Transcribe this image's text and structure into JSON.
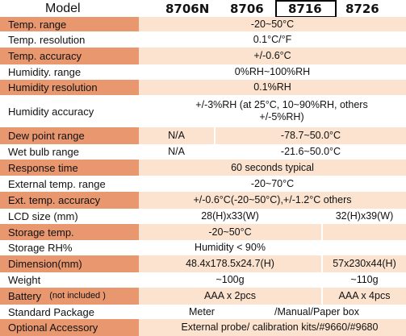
{
  "header": {
    "model_label": "Model",
    "products": [
      "8706N",
      "8706",
      "8716",
      "8726"
    ],
    "selected_product": "8716"
  },
  "rows": [
    {
      "label": "Temp. range",
      "cells": [
        {
          "text": "-20~50°C"
        }
      ]
    },
    {
      "label": "Temp. resolution",
      "cells": [
        {
          "text": "0.1°C/°F"
        }
      ]
    },
    {
      "label": "Temp. accuracy",
      "cells": [
        {
          "text": "+/-0.6°C"
        }
      ]
    },
    {
      "label": "Humidity. range",
      "cells": [
        {
          "text": "0%RH~100%RH"
        }
      ]
    },
    {
      "label": "Humidity resolution",
      "cells": [
        {
          "text": "0.1%RH"
        }
      ]
    },
    {
      "label": "Humidity accuracy",
      "cells": [
        {
          "text": "+/-3%RH (at 25°C, 10~90%RH, others +/-5%RH)"
        }
      ]
    },
    {
      "label": "Dew point range",
      "cells": [
        {
          "text": "N/A"
        },
        {
          "text": "-78.7~50.0°C"
        }
      ]
    },
    {
      "label": "Wet bulb range",
      "cells": [
        {
          "text": "N/A"
        },
        {
          "text": "-21.6~50.0°C"
        }
      ]
    },
    {
      "label": "Response time",
      "cells": [
        {
          "text": "60 seconds typical"
        }
      ]
    },
    {
      "label": "External temp. range",
      "cells": [
        {
          "text": "-20~70°C"
        }
      ]
    },
    {
      "label": "Ext. temp. accuracy",
      "cells": [
        {
          "text": "+/-0.6°C(-20~50°C),+/-1.2°C  others"
        }
      ]
    },
    {
      "label": "LCD size (mm)",
      "cells": [
        {
          "text": "28(H)x33(W)"
        },
        {
          "text": "32(H)x39(W)"
        }
      ]
    },
    {
      "label": "Storage temp.",
      "cells": [
        {
          "text": "-20~50°C"
        }
      ]
    },
    {
      "label": "Storage RH%",
      "cells": [
        {
          "text": "Humidity < 90%"
        }
      ]
    },
    {
      "label": "Dimension(mm)",
      "cells": [
        {
          "text": "48.4x178.5x24.7(H)"
        },
        {
          "text": "57x230x44(H)"
        }
      ]
    },
    {
      "label": "Weight",
      "cells": [
        {
          "text": "~100g"
        },
        {
          "text": "~110g"
        }
      ]
    },
    {
      "label": "Battery",
      "label_note": "(not included )",
      "cells": [
        {
          "text": "AAA x 2pcs"
        },
        {
          "text": "AAA x 4pcs"
        }
      ]
    },
    {
      "label": "Standard Package",
      "cells": [
        {
          "text": "Meter"
        },
        {
          "text": "/Manual/Paper box"
        }
      ]
    },
    {
      "label": "Optional Accessory",
      "cells": [
        {
          "text": "External probe/ calibration kits/#9660/#9680"
        }
      ]
    }
  ],
  "colors": {
    "label_accent": "#e8976f",
    "row_shade": "#fbe3cf"
  }
}
